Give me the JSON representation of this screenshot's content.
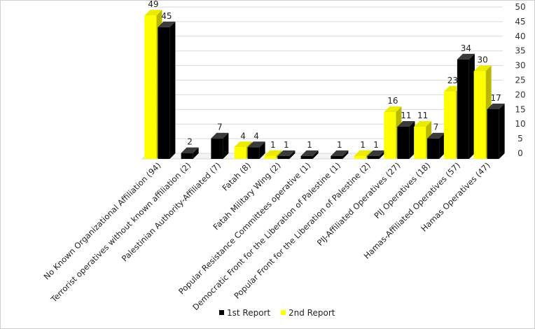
{
  "chart_data": {
    "type": "bar",
    "categories": [
      "No Known Organizational Affiliation (94)",
      "Terrorist operatives without known  affiliation (2)",
      "Palestinian Authority-Affiliated (7)",
      "Fatah (8)",
      "Fatah Military Wing (2)",
      "Popular Resistance Committees operative (1)",
      "Democratic Front for the Liberation of Palestine (1)",
      "Popular Front for the Liberation of Palestine (2)",
      "PIJ-Affiliated Operatives (27)",
      "PIJ Operatives (18)",
      "Hamas-Affiliated Operatives (57)",
      "Hamas Operatives (47)"
    ],
    "series": [
      {
        "name": "1st Report",
        "color": "#000000",
        "values": [
          45,
          2,
          7,
          4,
          1,
          1,
          1,
          1,
          11,
          7,
          34,
          17
        ]
      },
      {
        "name": "2nd Report",
        "color": "#ffff00",
        "values": [
          49,
          null,
          null,
          4,
          1,
          null,
          null,
          1,
          16,
          11,
          23,
          30
        ]
      }
    ],
    "yticks": [
      "0",
      "5",
      "10",
      "15",
      "20",
      "25",
      "30",
      "35",
      "40",
      "45",
      "50"
    ],
    "ylim": [
      0,
      50
    ],
    "ytick_step": 5,
    "grid": true,
    "axis_side": "right",
    "legend_position": "bottom-center",
    "legend_order": [
      0,
      1
    ]
  }
}
